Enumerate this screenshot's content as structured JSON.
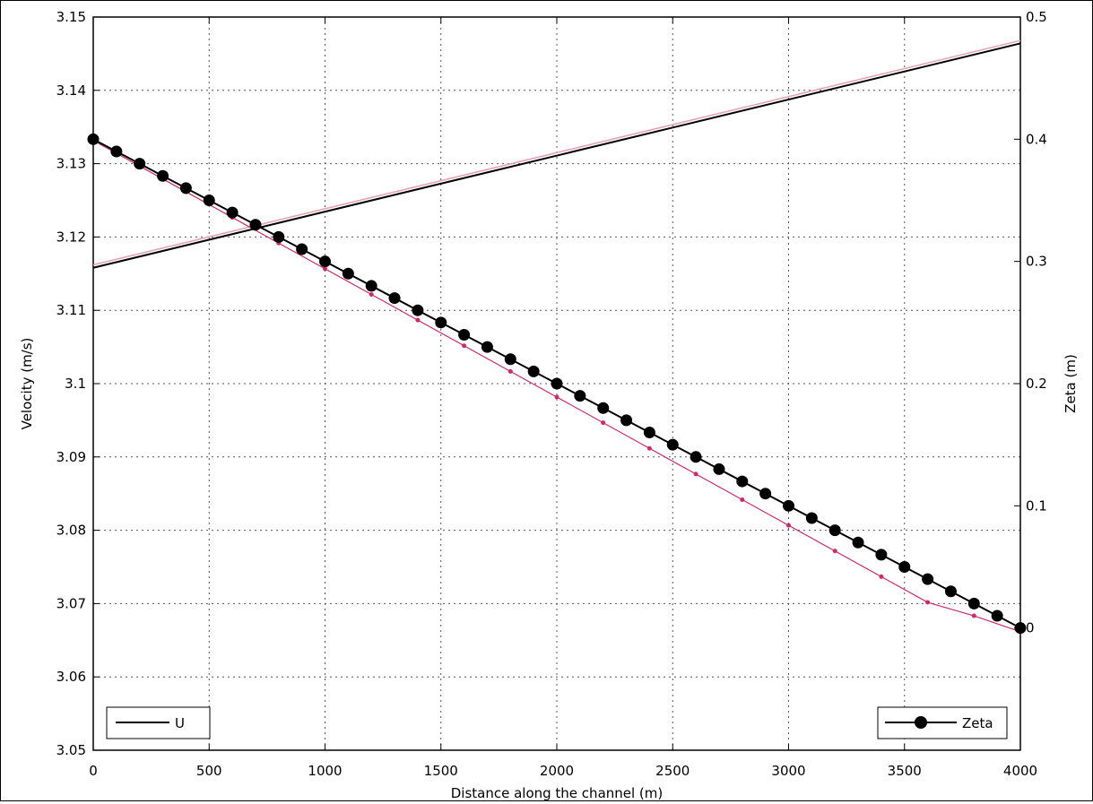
{
  "chart_data": {
    "type": "line",
    "title": "",
    "xlabel": "Distance along the channel (m)",
    "ylabel_left": "Velocity (m/s)",
    "ylabel_right": "Zeta (m)",
    "xlim": [
      0,
      4000
    ],
    "ylim_left": [
      3.05,
      3.15
    ],
    "ylim_right": [
      -0.1,
      0.5
    ],
    "grid": true,
    "x_ticks": [
      "0",
      "500",
      "1000",
      "1500",
      "2000",
      "2500",
      "3000",
      "3500",
      "4000"
    ],
    "x_tick_values": [
      0,
      500,
      1000,
      1500,
      2000,
      2500,
      3000,
      3500,
      4000
    ],
    "y_left_ticks": [
      "3.05",
      "3.06",
      "3.07",
      "3.08",
      "3.09",
      "3.1",
      "3.11",
      "3.12",
      "3.13",
      "3.14",
      "3.15"
    ],
    "y_left_tick_values": [
      3.05,
      3.06,
      3.07,
      3.08,
      3.09,
      3.1,
      3.11,
      3.12,
      3.13,
      3.14,
      3.15
    ],
    "y_right_ticks": [
      "0",
      "0.1",
      "0.2",
      "0.3",
      "0.4",
      "0.5"
    ],
    "y_right_tick_values": [
      0,
      0.1,
      0.2,
      0.3,
      0.4,
      0.5
    ],
    "series": [
      {
        "name": "U",
        "axis": "left",
        "color": "#000000",
        "marker": "none",
        "x": [
          0,
          4000
        ],
        "y": [
          3.1158,
          3.1464
        ]
      },
      {
        "axis": "left",
        "color": "#e8a0b0",
        "marker": "none",
        "x": [
          0,
          4000
        ],
        "y": [
          3.1162,
          3.1468
        ]
      },
      {
        "name": "Zeta",
        "axis": "right",
        "color": "#000000",
        "marker": "circle",
        "x": [
          0,
          100,
          200,
          300,
          400,
          500,
          600,
          700,
          800,
          900,
          1000,
          1100,
          1200,
          1300,
          1400,
          1500,
          1600,
          1700,
          1800,
          1900,
          2000,
          2100,
          2200,
          2300,
          2400,
          2500,
          2600,
          2700,
          2800,
          2900,
          3000,
          3100,
          3200,
          3300,
          3400,
          3500,
          3600,
          3700,
          3800,
          3900,
          4000
        ],
        "y": [
          0.4,
          0.39,
          0.38,
          0.37,
          0.36,
          0.35,
          0.34,
          0.33,
          0.32,
          0.31,
          0.3,
          0.29,
          0.28,
          0.27,
          0.26,
          0.25,
          0.24,
          0.23,
          0.22,
          0.21,
          0.2,
          0.19,
          0.18,
          0.17,
          0.16,
          0.15,
          0.14,
          0.13,
          0.12,
          0.11,
          0.1,
          0.09,
          0.08,
          0.07,
          0.06,
          0.05,
          0.04,
          0.03,
          0.02,
          0.01,
          0.0
        ]
      },
      {
        "axis": "right",
        "color": "#cc2a6a",
        "marker": "dot",
        "x": [
          0,
          200,
          400,
          600,
          800,
          1000,
          1200,
          1400,
          1600,
          1800,
          2000,
          2200,
          2400,
          2600,
          2800,
          3000,
          3200,
          3400,
          3600,
          3800,
          4000
        ],
        "y": [
          0.399,
          0.378,
          0.357,
          0.336,
          0.315,
          0.294,
          0.273,
          0.252,
          0.231,
          0.21,
          0.189,
          0.168,
          0.147,
          0.126,
          0.105,
          0.084,
          0.063,
          0.042,
          0.021,
          0.01,
          -0.003
        ]
      }
    ],
    "legends": [
      {
        "label": "U",
        "placement": "bottom-left"
      },
      {
        "label": "Zeta",
        "placement": "bottom-right"
      }
    ]
  }
}
